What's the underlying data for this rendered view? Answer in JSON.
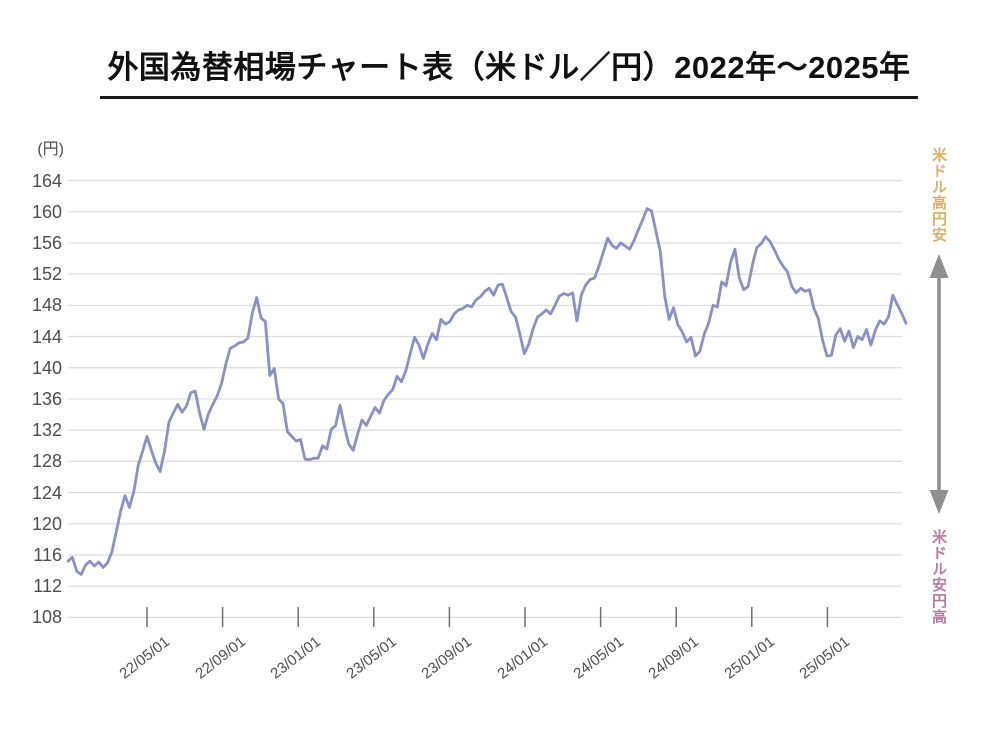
{
  "title": "外国為替相場チャート表（米ドル／円）2022年～2025年",
  "annotations": {
    "top_right": "米ドル高円安",
    "bottom_right": "米ドル安円高"
  },
  "colors": {
    "line": "#8A8FC9",
    "grid": "#DCDCDC",
    "tick": "#6E6E6E",
    "axis_text": "#4D4D4D",
    "title_text": "#111111",
    "annotation_top": "#D9B25F",
    "annotation_bottom": "#B67BA1",
    "arrow": "#8F8F8F"
  },
  "chart_data": {
    "type": "line",
    "title": "外国為替相場チャート表（米ドル／円）2022年～2025年",
    "y_unit_label": "(円)",
    "xlabel": "",
    "ylabel": "円",
    "ylim": [
      108,
      164
    ],
    "yticks": [
      164,
      160,
      156,
      152,
      148,
      144,
      140,
      136,
      132,
      128,
      124,
      120,
      116,
      112,
      108
    ],
    "xticks": [
      "22/05/01",
      "22/09/01",
      "23/01/01",
      "23/05/01",
      "23/09/01",
      "24/01/01",
      "24/05/01",
      "24/09/01",
      "25/01/01",
      "25/05/01"
    ],
    "grid": true,
    "legend": "none",
    "series": [
      {
        "name": "米ドル／円",
        "interval": "weekly",
        "x_start": "22/01/01",
        "x_end": "25/09/01",
        "values": [
          115.2,
          115.7,
          113.9,
          113.5,
          114.7,
          115.2,
          114.6,
          115.1,
          114.4,
          115.0,
          116.4,
          119.0,
          121.6,
          123.6,
          122.1,
          124.1,
          127.5,
          129.3,
          131.2,
          129.4,
          127.8,
          126.7,
          129.3,
          133.0,
          134.2,
          135.3,
          134.3,
          135.1,
          136.8,
          137.0,
          134.2,
          132.1,
          134.1,
          135.3,
          136.4,
          138.0,
          140.5,
          142.5,
          142.8,
          143.2,
          143.3,
          143.8,
          147.0,
          149.0,
          146.4,
          145.9,
          139.0,
          139.9,
          136.0,
          135.4,
          131.8,
          131.2,
          130.6,
          130.8,
          128.3,
          128.2,
          128.4,
          128.4,
          130.0,
          129.6,
          132.1,
          132.6,
          135.2,
          132.5,
          130.2,
          129.4,
          131.5,
          133.3,
          132.6,
          133.8,
          134.9,
          134.2,
          135.8,
          136.6,
          137.2,
          138.9,
          138.2,
          139.6,
          141.8,
          143.9,
          142.9,
          141.2,
          143.0,
          144.4,
          143.6,
          146.2,
          145.6,
          145.9,
          146.9,
          147.4,
          147.6,
          148.0,
          147.8,
          148.7,
          149.1,
          149.8,
          150.2,
          149.3,
          150.6,
          150.7,
          149.0,
          147.2,
          146.5,
          144.3,
          141.8,
          143.0,
          145.0,
          146.5,
          146.9,
          147.4,
          146.9,
          148.0,
          149.2,
          149.5,
          149.3,
          149.6,
          146.0,
          149.3,
          150.6,
          151.3,
          151.5,
          153.0,
          154.8,
          156.6,
          155.7,
          155.3,
          156.0,
          155.6,
          155.2,
          156.3,
          157.7,
          159.0,
          160.4,
          160.1,
          157.5,
          154.9,
          149.2,
          146.2,
          147.7,
          145.5,
          144.6,
          143.3,
          143.9,
          141.5,
          142.1,
          144.3,
          145.7,
          148.0,
          147.8,
          151.0,
          150.5,
          153.5,
          155.2,
          151.5,
          150.0,
          150.4,
          153.2,
          155.4,
          155.9,
          156.8,
          156.2,
          155.1,
          153.9,
          153.0,
          152.3,
          150.4,
          149.6,
          150.2,
          149.8,
          150.0,
          147.6,
          146.3,
          143.5,
          141.5,
          141.6,
          144.2,
          145.0,
          143.4,
          144.7,
          142.6,
          144.0,
          143.6,
          144.9,
          142.9,
          144.8,
          146.0,
          145.6,
          146.5,
          149.3,
          148.1,
          147.0,
          145.7
        ]
      }
    ]
  }
}
